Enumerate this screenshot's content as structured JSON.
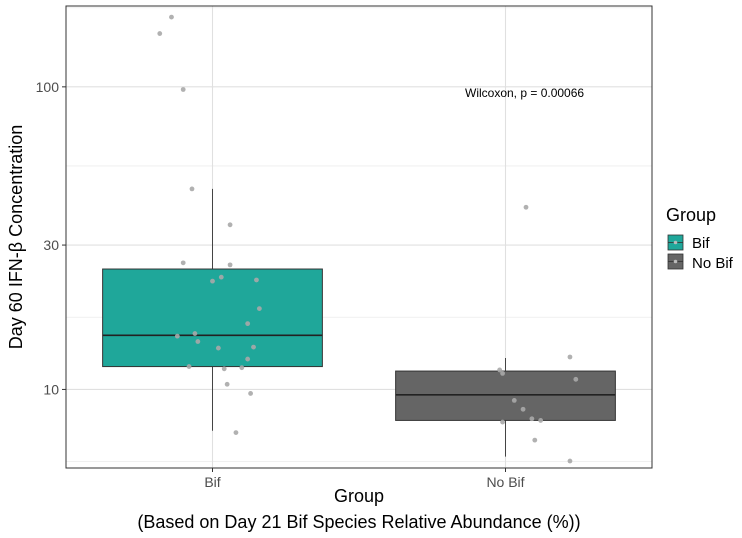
{
  "chart_data": {
    "type": "boxplot",
    "xlabel_line1": "Group",
    "xlabel_line2": "(Based on Day 21 Bif Species Relative Abundance (%))",
    "ylabel": "Day 60 IFN-β Concentration",
    "y_scale": "log10",
    "ylim": [
      5.5,
      185
    ],
    "y_ticks": [
      10,
      30,
      100
    ],
    "categories": [
      "Bif",
      "No Bif"
    ],
    "annotation": "Wilcoxon, p = 0.00066",
    "legend": {
      "title": "Group",
      "position": "right",
      "entries": [
        {
          "label": "Bif",
          "color": "#1fa79a"
        },
        {
          "label": "No Bif",
          "color": "#656565"
        }
      ]
    },
    "grid": true,
    "boxes": [
      {
        "group": "Bif",
        "color": "#1fa79a",
        "whisker_low": 7.3,
        "q1": 11.9,
        "median": 15.1,
        "q3": 25.0,
        "whisker_high": 46.0
      },
      {
        "group": "No Bif",
        "color": "#656565",
        "whisker_low": 6.0,
        "q1": 7.9,
        "median": 9.6,
        "q3": 11.5,
        "whisker_high": 12.7
      }
    ],
    "points": [
      {
        "group": "Bif",
        "jitter": -0.14,
        "value": 170
      },
      {
        "group": "Bif",
        "jitter": -0.18,
        "value": 150
      },
      {
        "group": "Bif",
        "jitter": -0.1,
        "value": 98
      },
      {
        "group": "Bif",
        "jitter": -0.07,
        "value": 46
      },
      {
        "group": "Bif",
        "jitter": 0.06,
        "value": 35
      },
      {
        "group": "Bif",
        "jitter": 0.06,
        "value": 25.8
      },
      {
        "group": "Bif",
        "jitter": -0.1,
        "value": 26.2
      },
      {
        "group": "Bif",
        "jitter": 0.03,
        "value": 23.5
      },
      {
        "group": "Bif",
        "jitter": 0.15,
        "value": 23.0
      },
      {
        "group": "Bif",
        "jitter": 0.0,
        "value": 22.8
      },
      {
        "group": "Bif",
        "jitter": 0.16,
        "value": 18.5
      },
      {
        "group": "Bif",
        "jitter": 0.12,
        "value": 16.5
      },
      {
        "group": "Bif",
        "jitter": -0.06,
        "value": 15.3
      },
      {
        "group": "Bif",
        "jitter": -0.12,
        "value": 15.0
      },
      {
        "group": "Bif",
        "jitter": -0.05,
        "value": 14.4
      },
      {
        "group": "Bif",
        "jitter": 0.14,
        "value": 13.8
      },
      {
        "group": "Bif",
        "jitter": 0.02,
        "value": 13.7
      },
      {
        "group": "Bif",
        "jitter": 0.12,
        "value": 12.6
      },
      {
        "group": "Bif",
        "jitter": -0.08,
        "value": 11.9
      },
      {
        "group": "Bif",
        "jitter": 0.04,
        "value": 11.7
      },
      {
        "group": "Bif",
        "jitter": 0.1,
        "value": 11.8
      },
      {
        "group": "Bif",
        "jitter": 0.05,
        "value": 10.4
      },
      {
        "group": "Bif",
        "jitter": 0.13,
        "value": 9.7
      },
      {
        "group": "Bif",
        "jitter": 0.08,
        "value": 7.2
      },
      {
        "group": "No Bif",
        "jitter": 0.07,
        "value": 40
      },
      {
        "group": "No Bif",
        "jitter": -0.02,
        "value": 11.6
      },
      {
        "group": "No Bif",
        "jitter": -0.01,
        "value": 11.3
      },
      {
        "group": "No Bif",
        "jitter": 0.22,
        "value": 12.8
      },
      {
        "group": "No Bif",
        "jitter": 0.24,
        "value": 10.8
      },
      {
        "group": "No Bif",
        "jitter": 0.03,
        "value": 9.2
      },
      {
        "group": "No Bif",
        "jitter": 0.06,
        "value": 8.6
      },
      {
        "group": "No Bif",
        "jitter": 0.09,
        "value": 8.0
      },
      {
        "group": "No Bif",
        "jitter": 0.12,
        "value": 7.9
      },
      {
        "group": "No Bif",
        "jitter": -0.01,
        "value": 7.8
      },
      {
        "group": "No Bif",
        "jitter": 0.1,
        "value": 6.8
      },
      {
        "group": "No Bif",
        "jitter": 0.22,
        "value": 5.8
      }
    ]
  }
}
